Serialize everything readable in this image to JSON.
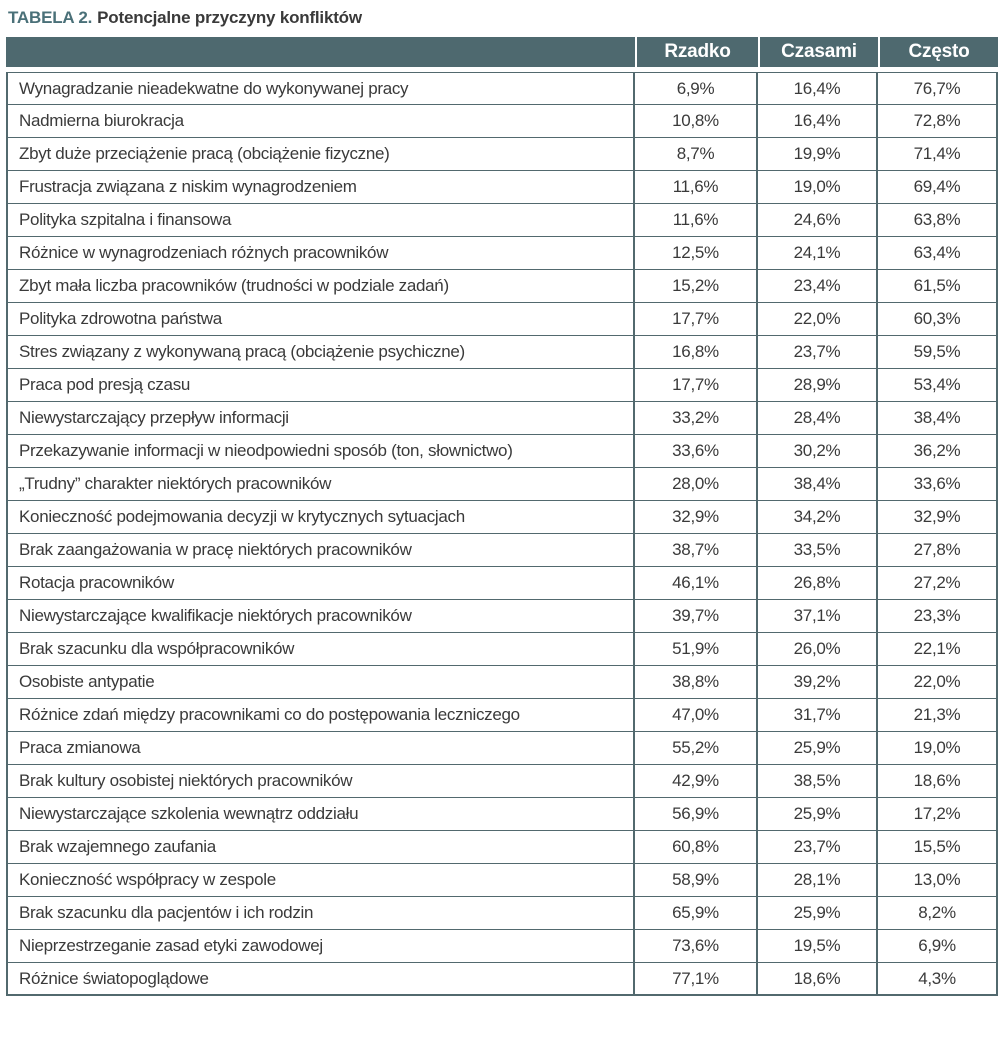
{
  "title": {
    "label": "TABELA 2.",
    "text": "Potencjalne przyczyny konfliktów"
  },
  "table": {
    "columns": [
      "Rzadko",
      "Czasami",
      "Często"
    ],
    "rows": [
      {
        "label": "Wynagradzanie nieadekwatne do wykonywanej pracy",
        "values": [
          "6,9%",
          "16,4%",
          "76,7%"
        ]
      },
      {
        "label": "Nadmierna biurokracja",
        "values": [
          "10,8%",
          "16,4%",
          "72,8%"
        ]
      },
      {
        "label": "Zbyt duże przeciążenie pracą (obciążenie fizyczne)",
        "values": [
          "8,7%",
          "19,9%",
          "71,4%"
        ]
      },
      {
        "label": "Frustracja związana z niskim wynagrodzeniem",
        "values": [
          "11,6%",
          "19,0%",
          "69,4%"
        ]
      },
      {
        "label": "Polityka szpitalna i finansowa",
        "values": [
          "11,6%",
          "24,6%",
          "63,8%"
        ]
      },
      {
        "label": "Różnice w wynagrodzeniach różnych pracowników",
        "values": [
          "12,5%",
          "24,1%",
          "63,4%"
        ]
      },
      {
        "label": "Zbyt mała liczba pracowników (trudności w podziale zadań)",
        "values": [
          "15,2%",
          "23,4%",
          "61,5%"
        ]
      },
      {
        "label": "Polityka zdrowotna państwa",
        "values": [
          "17,7%",
          "22,0%",
          "60,3%"
        ]
      },
      {
        "label": "Stres związany z wykonywaną pracą (obciążenie psychiczne)",
        "values": [
          "16,8%",
          "23,7%",
          "59,5%"
        ]
      },
      {
        "label": "Praca pod presją czasu",
        "values": [
          "17,7%",
          "28,9%",
          "53,4%"
        ]
      },
      {
        "label": "Niewystarczający przepływ informacji",
        "values": [
          "33,2%",
          "28,4%",
          "38,4%"
        ]
      },
      {
        "label": "Przekazywanie informacji w nieodpowiedni sposób (ton, słownictwo)",
        "values": [
          "33,6%",
          "30,2%",
          "36,2%"
        ]
      },
      {
        "label": "„Trudny” charakter niektórych pracowników",
        "values": [
          "28,0%",
          "38,4%",
          "33,6%"
        ]
      },
      {
        "label": "Konieczność podejmowania decyzji w krytycznych sytuacjach",
        "values": [
          "32,9%",
          "34,2%",
          "32,9%"
        ]
      },
      {
        "label": "Brak zaangażowania w pracę niektórych pracowników",
        "values": [
          "38,7%",
          "33,5%",
          "27,8%"
        ]
      },
      {
        "label": "Rotacja pracowników",
        "values": [
          "46,1%",
          "26,8%",
          "27,2%"
        ]
      },
      {
        "label": "Niewystarczające kwalifikacje niektórych pracowników",
        "values": [
          "39,7%",
          "37,1%",
          "23,3%"
        ]
      },
      {
        "label": "Brak szacunku dla współpracowników",
        "values": [
          "51,9%",
          "26,0%",
          "22,1%"
        ]
      },
      {
        "label": "Osobiste antypatie",
        "values": [
          "38,8%",
          "39,2%",
          "22,0%"
        ]
      },
      {
        "label": "Różnice zdań między pracownikami co do postępowania leczniczego",
        "values": [
          "47,0%",
          "31,7%",
          "21,3%"
        ]
      },
      {
        "label": "Praca zmianowa",
        "values": [
          "55,2%",
          "25,9%",
          "19,0%"
        ]
      },
      {
        "label": "Brak kultury osobistej niektórych pracowników",
        "values": [
          "42,9%",
          "38,5%",
          "18,6%"
        ]
      },
      {
        "label": "Niewystarczające szkolenia wewnątrz oddziału",
        "values": [
          "56,9%",
          "25,9%",
          "17,2%"
        ]
      },
      {
        "label": "Brak wzajemnego zaufania",
        "values": [
          "60,8%",
          "23,7%",
          "15,5%"
        ]
      },
      {
        "label": "Konieczność współpracy w zespole",
        "values": [
          "58,9%",
          "28,1%",
          "13,0%"
        ]
      },
      {
        "label": "Brak szacunku dla pacjentów i ich rodzin",
        "values": [
          "65,9%",
          "25,9%",
          "8,2%"
        ]
      },
      {
        "label": "Nieprzestrzeganie zasad etyki zawodowej",
        "values": [
          "73,6%",
          "19,5%",
          "6,9%"
        ]
      },
      {
        "label": "Różnice światopoglądowe",
        "values": [
          "77,1%",
          "18,6%",
          "4,3%"
        ]
      }
    ]
  },
  "colors": {
    "header_background": "#4e696f",
    "border": "#52696e",
    "title_accent": "#4a7078",
    "body_text": "#3a3a3a"
  }
}
